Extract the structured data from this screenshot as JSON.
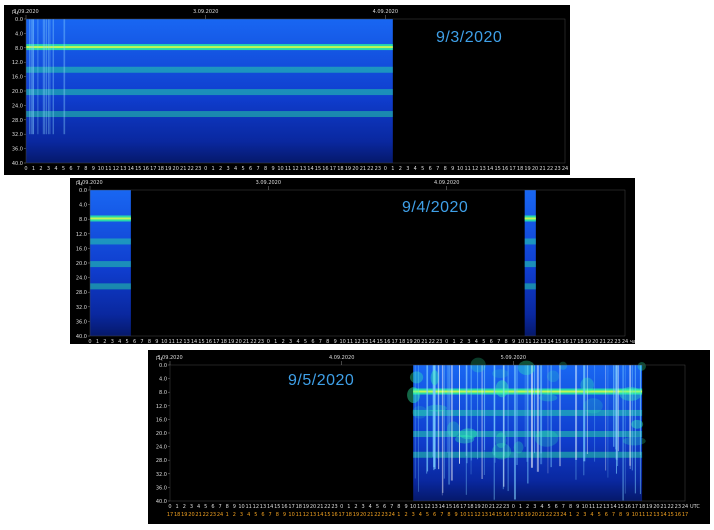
{
  "chart_data": [
    {
      "type": "heatmap",
      "label": "9/3/2020",
      "yunit": "Гц",
      "xunit": "час",
      "ylim": [
        0,
        40
      ],
      "y_ticks": [
        "0.0",
        "4.0",
        "8.0",
        "12.0",
        "16.0",
        "20.0",
        "24.0",
        "28.0",
        "32.0",
        "36.0",
        "40.0"
      ],
      "dates": [
        "2.09.2020",
        "3.09.2020",
        "4.09.2020"
      ],
      "hours": [
        "0",
        "1",
        "2",
        "3",
        "4",
        "5",
        "6",
        "7",
        "8",
        "9",
        "10",
        "11",
        "12",
        "13",
        "14",
        "15",
        "16",
        "17",
        "18",
        "19",
        "20",
        "21",
        "22",
        "23",
        "0",
        "1",
        "2",
        "3",
        "4",
        "5",
        "6",
        "7",
        "8",
        "9",
        "10",
        "11",
        "12",
        "13",
        "14",
        "15",
        "16",
        "17",
        "18",
        "19",
        "20",
        "21",
        "22",
        "23",
        "0",
        "1",
        "2",
        "3",
        "4",
        "5",
        "6",
        "7",
        "8",
        "9",
        "10",
        "11",
        "12",
        "13",
        "14",
        "15",
        "16",
        "17",
        "18",
        "19",
        "20",
        "21",
        "22",
        "23",
        "24"
      ],
      "data_extent_hours": [
        0,
        49
      ],
      "bands_hz": [
        7.8,
        14.1,
        20.3,
        26.4
      ]
    },
    {
      "type": "heatmap",
      "label": "9/4/2020",
      "yunit": "Гц",
      "xunit": "час",
      "ylim": [
        0,
        40
      ],
      "y_ticks": [
        "0.0",
        "4.0",
        "8.0",
        "12.0",
        "16.0",
        "20.0",
        "24.0",
        "28.0",
        "32.0",
        "36.0",
        "40.0"
      ],
      "dates": [
        "2.09.2020",
        "3.09.2020",
        "4.09.2020"
      ],
      "hours": [
        "0",
        "1",
        "2",
        "3",
        "4",
        "5",
        "6",
        "7",
        "8",
        "9",
        "10",
        "11",
        "12",
        "13",
        "14",
        "15",
        "16",
        "17",
        "18",
        "19",
        "20",
        "21",
        "22",
        "23",
        "0",
        "1",
        "2",
        "3",
        "4",
        "5",
        "6",
        "7",
        "8",
        "9",
        "10",
        "11",
        "12",
        "13",
        "14",
        "15",
        "16",
        "17",
        "18",
        "19",
        "20",
        "21",
        "22",
        "23",
        "0",
        "1",
        "2",
        "3",
        "4",
        "5",
        "6",
        "7",
        "8",
        "9",
        "10",
        "11",
        "12",
        "13",
        "14",
        "15",
        "16",
        "17",
        "18",
        "19",
        "20",
        "21",
        "22",
        "23",
        "24"
      ],
      "data_segments_hours": [
        [
          0,
          5.5
        ],
        [
          58.5,
          60
        ]
      ],
      "bands_hz": [
        7.8,
        14.1,
        20.3,
        26.4
      ]
    },
    {
      "type": "heatmap",
      "label": "9/5/2020",
      "yunit": "Гц",
      "xunit": "UTC",
      "ylim": [
        0,
        40
      ],
      "y_ticks": [
        "0.0",
        "4.0",
        "8.0",
        "12.0",
        "16.0",
        "20.0",
        "24.0",
        "28.0",
        "32.0",
        "36.0",
        "40.0"
      ],
      "dates": [
        "3.09.2020",
        "4.09.2020",
        "5.09.2020"
      ],
      "hours": [
        "0",
        "1",
        "2",
        "3",
        "4",
        "5",
        "6",
        "7",
        "8",
        "9",
        "10",
        "11",
        "12",
        "13",
        "14",
        "15",
        "16",
        "17",
        "18",
        "19",
        "20",
        "21",
        "22",
        "23",
        "0",
        "1",
        "2",
        "3",
        "4",
        "5",
        "6",
        "7",
        "8",
        "9",
        "10",
        "11",
        "12",
        "13",
        "14",
        "15",
        "16",
        "17",
        "18",
        "19",
        "20",
        "21",
        "22",
        "23",
        "0",
        "1",
        "2",
        "3",
        "4",
        "5",
        "6",
        "7",
        "8",
        "9",
        "10",
        "11",
        "12",
        "13",
        "14",
        "15",
        "16",
        "17",
        "18",
        "19",
        "20",
        "21",
        "22",
        "23",
        "24"
      ],
      "hours_local": [
        "17",
        "18",
        "19",
        "20",
        "21",
        "22",
        "23",
        "24",
        "1",
        "2",
        "3",
        "4",
        "5",
        "6",
        "7",
        "8",
        "9",
        "10",
        "11",
        "12",
        "13",
        "14",
        "15",
        "16",
        "17",
        "18",
        "19",
        "20",
        "21",
        "22",
        "23",
        "24",
        "1",
        "2",
        "3",
        "4",
        "5",
        "6",
        "7",
        "8",
        "9",
        "10",
        "11",
        "12",
        "13",
        "14",
        "15",
        "16",
        "17",
        "18",
        "19",
        "20",
        "21",
        "22",
        "23",
        "24",
        "1",
        "2",
        "3",
        "4",
        "5",
        "6",
        "7",
        "8",
        "9",
        "10",
        "11",
        "12",
        "13",
        "14",
        "15",
        "16",
        "17"
      ],
      "data_extent_hours": [
        34,
        66
      ],
      "bands_hz": [
        7.8,
        14.1,
        20.3,
        26.4
      ]
    }
  ],
  "colors": {
    "background": "#000000",
    "label": "#3fa0e8",
    "band": "#2af0a0",
    "peak": "#e8ff40",
    "base": "#0a2a9a"
  }
}
